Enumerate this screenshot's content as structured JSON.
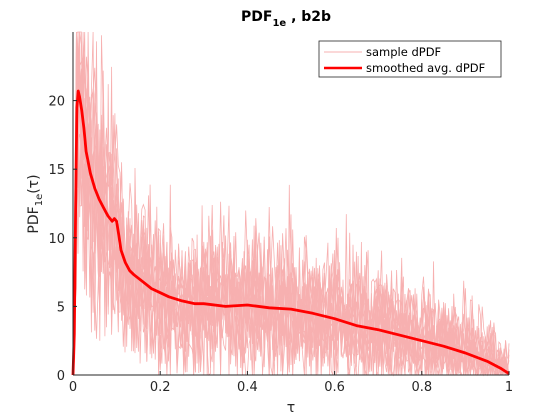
{
  "chart_data": {
    "type": "line",
    "title": "PDF",
    "title_sub": "1e",
    "title_suffix": " , b2b",
    "xlabel": "τ",
    "ylabel": "PDF",
    "ylabel_sub": "1e",
    "ylabel_suffix": "(τ)",
    "xlim": [
      0,
      1
    ],
    "ylim": [
      0,
      25
    ],
    "x_ticks": [
      0,
      0.2,
      0.4,
      0.6,
      0.8,
      1
    ],
    "x_tick_labels": [
      "0",
      "0.2",
      "0.4",
      "0.6",
      "0.8",
      "1"
    ],
    "y_ticks": [
      0,
      5,
      10,
      15,
      20
    ],
    "y_tick_labels": [
      "0",
      "5",
      "10",
      "15",
      "20"
    ],
    "grid": false,
    "legend": {
      "position": "top-right",
      "entries": [
        {
          "label": "sample dPDF",
          "color": "#f7b0b0"
        },
        {
          "label": "smoothed avg. dPDF",
          "color": "#ff0000"
        }
      ]
    },
    "series": [
      {
        "name": "smoothed avg. dPDF",
        "color": "#ff0000",
        "x": [
          0,
          0.003,
          0.006,
          0.009,
          0.012,
          0.015,
          0.02,
          0.025,
          0.03,
          0.04,
          0.05,
          0.06,
          0.07,
          0.08,
          0.09,
          0.095,
          0.1,
          0.105,
          0.11,
          0.12,
          0.13,
          0.14,
          0.16,
          0.18,
          0.2,
          0.22,
          0.25,
          0.28,
          0.3,
          0.35,
          0.4,
          0.45,
          0.5,
          0.55,
          0.6,
          0.65,
          0.7,
          0.75,
          0.8,
          0.85,
          0.9,
          0.95,
          0.98,
          1.0
        ],
        "y": [
          0,
          3,
          12,
          19.5,
          20.7,
          20.3,
          19.3,
          18.0,
          16.3,
          14.7,
          13.6,
          12.8,
          12.2,
          11.6,
          11.2,
          11.4,
          11.2,
          10.2,
          9.1,
          8.2,
          7.6,
          7.3,
          6.8,
          6.3,
          6.0,
          5.7,
          5.4,
          5.2,
          5.2,
          5.0,
          5.1,
          4.9,
          4.8,
          4.5,
          4.1,
          3.6,
          3.3,
          2.9,
          2.5,
          2.1,
          1.6,
          1.0,
          0.5,
          0.1
        ]
      }
    ],
    "samples_note_color": "#f7b0b0"
  }
}
